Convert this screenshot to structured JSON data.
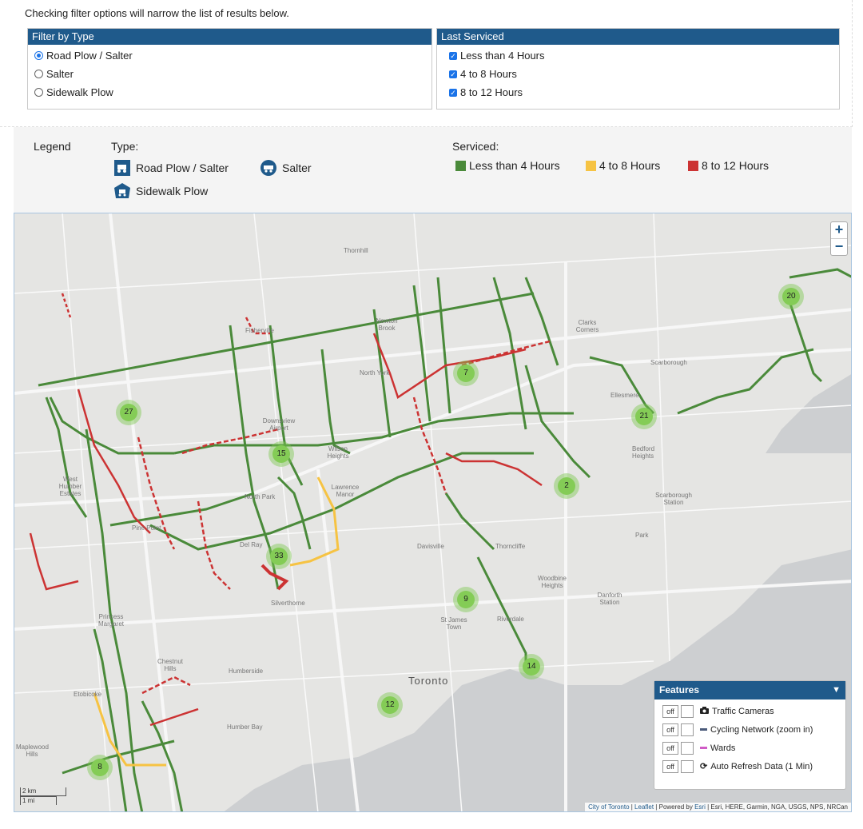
{
  "intro_text": "Checking filter options will narrow the list of results below.",
  "filter_type": {
    "title": "Filter by Type",
    "options": [
      {
        "label": "Road Plow / Salter",
        "selected": true
      },
      {
        "label": "Salter",
        "selected": false
      },
      {
        "label": "Sidewalk Plow",
        "selected": false
      }
    ]
  },
  "last_serviced": {
    "title": "Last Serviced",
    "options": [
      {
        "label": "Less than 4 Hours",
        "checked": true
      },
      {
        "label": "4 to 8 Hours",
        "checked": true
      },
      {
        "label": "8 to 12 Hours",
        "checked": true
      }
    ]
  },
  "legend": {
    "title": "Legend",
    "type_title": "Type:",
    "types": [
      "Road Plow / Salter",
      "Salter",
      "Sidewalk Plow"
    ],
    "serviced_title": "Serviced:",
    "serviced": [
      {
        "label": "Less than 4 Hours",
        "color": "#4a8a3a"
      },
      {
        "label": "4 to 8 Hours",
        "color": "#f6c343"
      },
      {
        "label": "8 to 12 Hours",
        "color": "#cc3333"
      }
    ],
    "type_icon_color": "#1f5a8b"
  },
  "map": {
    "zoom_in": "+",
    "zoom_out": "−",
    "places": [
      "Thornhill",
      "Newton Brook",
      "Clarks Corners",
      "Fisherville",
      "North York",
      "Scarborough",
      "Ellesmere",
      "Downsview Airport",
      "Wilson Heights",
      "West Humber Estates",
      "North Park",
      "Lawrence Manor",
      "Scarborough Station",
      "Pine Point",
      "Del Ray",
      "Davisville",
      "Thorncliffe",
      "Park",
      "Woodbine Heights",
      "Silverthorne",
      "Danforth Station",
      "Princess Margaret",
      "St James Town",
      "Riverdale",
      "Chestnut Hills",
      "Humberside",
      "Toronto",
      "Etobicoke",
      "Humber Bay",
      "Maplewood Hills",
      "Bedford Heights"
    ],
    "clusters": [
      "27",
      "15",
      "33",
      "7",
      "2",
      "9",
      "14",
      "12",
      "8",
      "21",
      "20"
    ],
    "scale_km": "2 km",
    "scale_mi": "1 mi",
    "attribution": {
      "city": "City of Toronto",
      "leaflet": "Leaflet",
      "powered": "Powered by",
      "esri": "Esri",
      "rest": "Esri, HERE, Garmin, NGA, USGS, NPS, NRCan"
    },
    "features": {
      "title": "Features",
      "rows": [
        {
          "toggle": "off",
          "label": "Traffic Cameras",
          "icon": "camera-icon"
        },
        {
          "toggle": "off",
          "label": "Cycling Network (zoom in)",
          "icon": "cycling-line",
          "color": "#4a5a7a"
        },
        {
          "toggle": "off",
          "label": "Wards",
          "icon": "wards-line",
          "color": "#d05cc6"
        },
        {
          "toggle": "off",
          "label": "Auto Refresh Data (1 Min)",
          "icon": "refresh-icon"
        }
      ]
    }
  }
}
